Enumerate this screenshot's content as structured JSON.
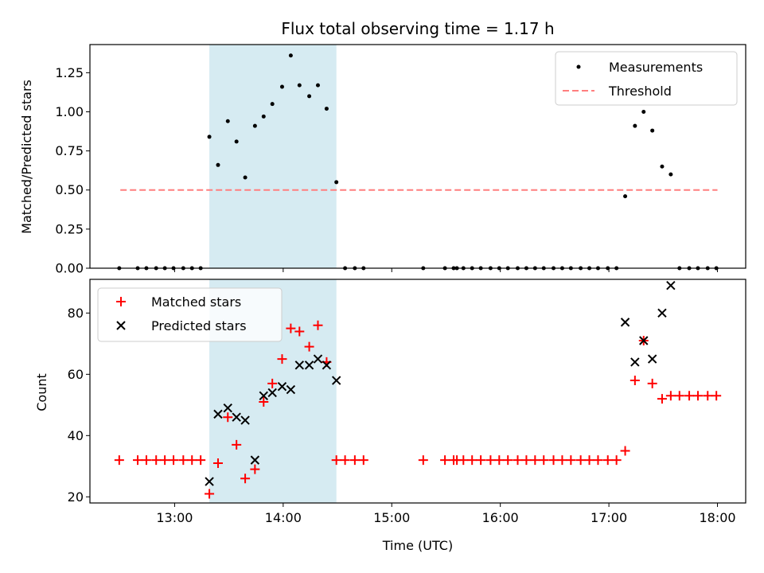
{
  "chart_data": [
    {
      "type": "scatter",
      "title": "Flux total observing time = 1.17 h",
      "xlabel": "",
      "ylabel": "Matched/Predicted stars",
      "ylim": [
        0,
        1.43
      ],
      "yticks": [
        0.0,
        0.25,
        0.5,
        0.75,
        1.0,
        1.25
      ],
      "ytick_labels": [
        "0.00",
        "0.25",
        "0.50",
        "0.75",
        "1.00",
        "1.25"
      ],
      "xlim": [
        12.22,
        18.26
      ],
      "xticks": [
        13,
        14,
        15,
        16,
        17,
        18
      ],
      "highlight_span": [
        13.32,
        14.49
      ],
      "legend": {
        "placement": "top-right",
        "entries": [
          "Measurements",
          "Threshold"
        ]
      },
      "threshold": {
        "name": "Threshold",
        "x": [
          12.5,
          18.0
        ],
        "y": 0.5,
        "color": "#ff7f7f"
      },
      "series": [
        {
          "name": "Measurements",
          "marker": "dot",
          "color": "#000000",
          "x": [
            12.49,
            12.66,
            12.74,
            12.83,
            12.91,
            12.99,
            13.08,
            13.16,
            13.24,
            13.32,
            13.4,
            13.49,
            13.57,
            13.65,
            13.74,
            13.82,
            13.9,
            13.99,
            14.07,
            14.15,
            14.24,
            14.32,
            14.4,
            14.49,
            14.57,
            14.66,
            14.74,
            15.29,
            15.49,
            15.57,
            15.6,
            15.66,
            15.74,
            15.82,
            15.91,
            15.99,
            16.07,
            16.16,
            16.24,
            16.32,
            16.4,
            16.49,
            16.57,
            16.65,
            16.74,
            16.82,
            16.9,
            16.99,
            17.07,
            17.15,
            17.24,
            17.32,
            17.4,
            17.49,
            17.57,
            17.65,
            17.74,
            17.82,
            17.91,
            17.99
          ],
          "y": [
            0,
            0,
            0,
            0,
            0,
            0,
            0,
            0,
            0,
            0.84,
            0.66,
            0.94,
            0.81,
            0.58,
            0.91,
            0.97,
            1.05,
            1.16,
            1.36,
            1.17,
            1.1,
            1.17,
            1.02,
            0.55,
            0,
            0,
            0,
            0,
            0,
            0,
            0,
            0,
            0,
            0,
            0,
            0,
            0,
            0,
            0,
            0,
            0,
            0,
            0,
            0,
            0,
            0,
            0,
            0,
            0,
            0.46,
            0.91,
            1.0,
            0.88,
            0.65,
            0.6,
            0,
            0,
            0,
            0,
            0
          ]
        }
      ]
    },
    {
      "type": "scatter",
      "title": "",
      "xlabel": "Time (UTC)",
      "ylabel": "Count",
      "ylim": [
        18,
        91
      ],
      "yticks": [
        20,
        40,
        60,
        80
      ],
      "ytick_labels": [
        "20",
        "40",
        "60",
        "80"
      ],
      "xlim": [
        12.22,
        18.26
      ],
      "xticks": [
        13,
        14,
        15,
        16,
        17,
        18
      ],
      "xtick_labels": [
        "13:00",
        "14:00",
        "15:00",
        "16:00",
        "17:00",
        "18:00"
      ],
      "highlight_span": [
        13.32,
        14.49
      ],
      "legend": {
        "placement": "top-left",
        "entries": [
          "Matched stars",
          "Predicted stars"
        ]
      },
      "series": [
        {
          "name": "Matched stars",
          "marker": "plus",
          "color": "#ff0000",
          "x": [
            12.49,
            12.66,
            12.74,
            12.83,
            12.91,
            12.99,
            13.08,
            13.16,
            13.24,
            13.32,
            13.4,
            13.49,
            13.57,
            13.65,
            13.74,
            13.82,
            13.9,
            13.99,
            14.07,
            14.15,
            14.24,
            14.32,
            14.4,
            14.49,
            14.57,
            14.66,
            14.74,
            15.29,
            15.49,
            15.57,
            15.6,
            15.66,
            15.74,
            15.82,
            15.91,
            15.99,
            16.07,
            16.16,
            16.24,
            16.32,
            16.4,
            16.49,
            16.57,
            16.65,
            16.74,
            16.82,
            16.9,
            16.99,
            17.07,
            17.15,
            17.24,
            17.32,
            17.4,
            17.49,
            17.57,
            17.65,
            17.74,
            17.82,
            17.91,
            17.99
          ],
          "y": [
            32,
            32,
            32,
            32,
            32,
            32,
            32,
            32,
            32,
            21,
            31,
            46,
            37,
            26,
            29,
            51,
            57,
            65,
            75,
            74,
            69,
            76,
            64,
            32,
            32,
            32,
            32,
            32,
            32,
            32,
            32,
            32,
            32,
            32,
            32,
            32,
            32,
            32,
            32,
            32,
            32,
            32,
            32,
            32,
            32,
            32,
            32,
            32,
            32,
            35,
            58,
            71,
            57,
            52,
            53,
            53,
            53,
            53,
            53,
            53
          ]
        },
        {
          "name": "Predicted stars",
          "marker": "x",
          "color": "#000000",
          "x": [
            13.32,
            13.4,
            13.49,
            13.57,
            13.65,
            13.74,
            13.82,
            13.9,
            13.99,
            14.07,
            14.15,
            14.24,
            14.32,
            14.4,
            14.49,
            17.15,
            17.24,
            17.32,
            17.4,
            17.49,
            17.57
          ],
          "y": [
            25,
            47,
            49,
            46,
            45,
            32,
            53,
            54,
            56,
            55,
            63,
            63,
            65,
            63,
            58,
            77,
            64,
            71,
            65,
            80,
            89
          ]
        }
      ]
    }
  ]
}
